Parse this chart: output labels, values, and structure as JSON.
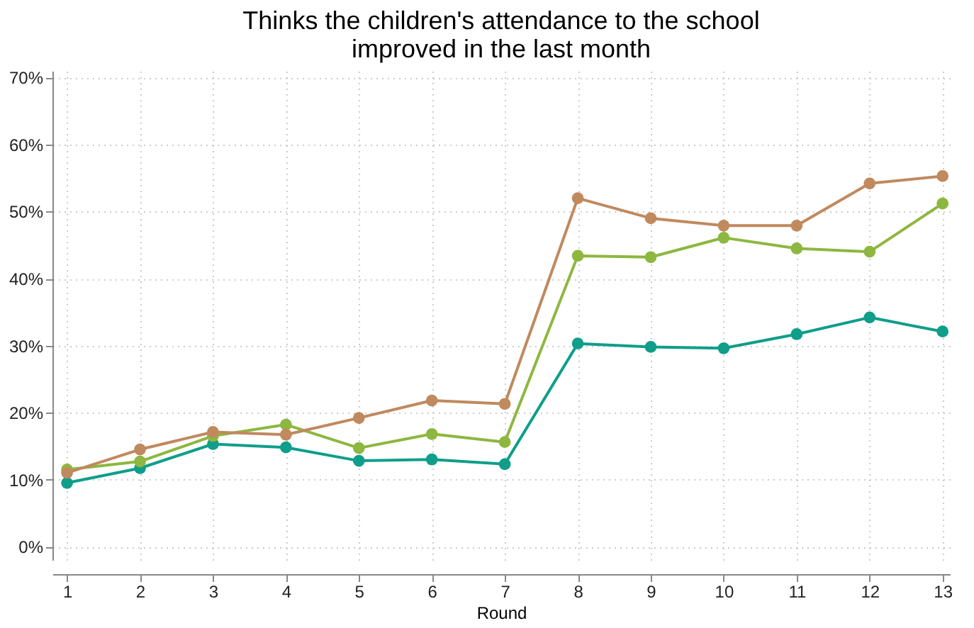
{
  "chart_data": {
    "type": "line",
    "title": [
      "Thinks the children's attendance to the school",
      "improved in the last month"
    ],
    "xlabel": "Round",
    "x": [
      1,
      2,
      3,
      4,
      5,
      6,
      7,
      8,
      9,
      10,
      11,
      12,
      13
    ],
    "series": [
      {
        "color": "#c0895e",
        "values": [
          11.0,
          14.5,
          17.1,
          16.7,
          19.2,
          21.8,
          21.3,
          52.0,
          49.0,
          47.9,
          47.9,
          54.2,
          55.3
        ]
      },
      {
        "color": "#8db73f",
        "values": [
          11.5,
          12.7,
          16.5,
          18.2,
          14.7,
          16.8,
          15.6,
          43.4,
          43.2,
          46.1,
          44.5,
          44.0,
          51.2
        ]
      },
      {
        "color": "#0e9e8a",
        "values": [
          9.5,
          11.7,
          15.3,
          14.8,
          12.8,
          13.0,
          12.3,
          30.3,
          29.8,
          29.6,
          31.7,
          34.2,
          32.1
        ]
      }
    ],
    "xlim": [
      0.8,
      13.1
    ],
    "xticks": [
      1,
      2,
      3,
      4,
      5,
      6,
      7,
      8,
      9,
      10,
      11,
      12,
      13
    ],
    "ylim": [
      -2,
      71
    ],
    "yticks": [
      {
        "value": 0,
        "label": "0%"
      },
      {
        "value": 10,
        "label": "10%"
      },
      {
        "value": 20,
        "label": "20%"
      },
      {
        "value": 30,
        "label": "30%"
      },
      {
        "value": 40,
        "label": "40%"
      },
      {
        "value": 50,
        "label": "50%"
      },
      {
        "value": 60,
        "label": "60%"
      },
      {
        "value": 70,
        "label": "70%"
      }
    ],
    "grid": true,
    "legend": false,
    "marker": "circle",
    "line_style": "solid"
  }
}
